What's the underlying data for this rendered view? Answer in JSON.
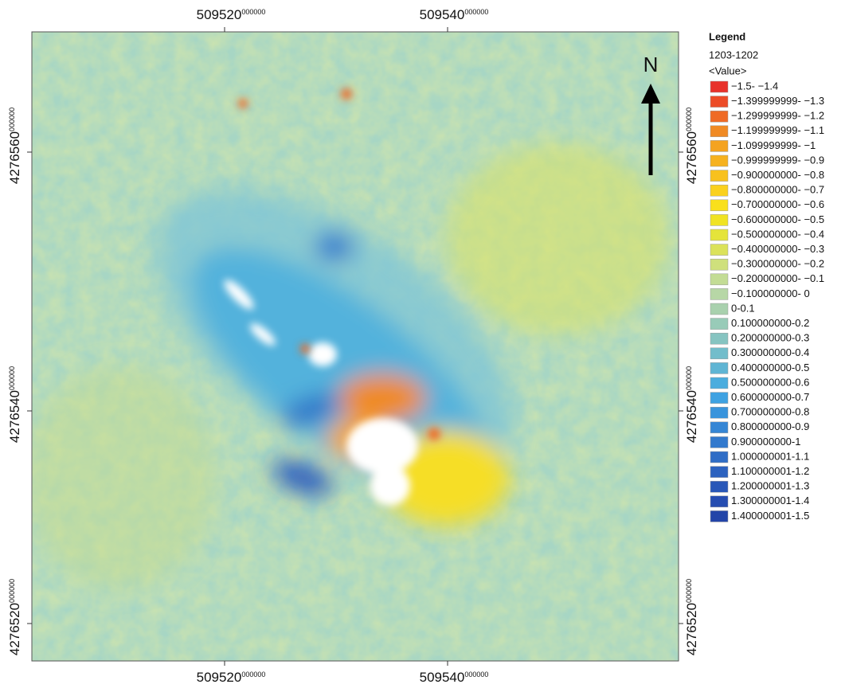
{
  "map": {
    "top_ticks": [
      {
        "main": "509520",
        "sub": "000000"
      },
      {
        "main": "509540",
        "sub": "000000"
      }
    ],
    "bottom_ticks": [
      {
        "main": "509520",
        "sub": "000000"
      },
      {
        "main": "509540",
        "sub": "000000"
      }
    ],
    "left_ticks": [
      {
        "main": "4276560",
        "sub": "000000"
      },
      {
        "main": "4276540",
        "sub": "000000"
      },
      {
        "main": "4276520",
        "sub": "000000"
      }
    ],
    "right_ticks": [
      {
        "main": "4276560",
        "sub": "000000"
      },
      {
        "main": "4276540",
        "sub": "000000"
      },
      {
        "main": "4276520",
        "sub": "000000"
      }
    ],
    "north": "N"
  },
  "legend": {
    "title": "Legend",
    "layer": "1203-1202",
    "field": "<Value>",
    "items": [
      {
        "label": "−1.5- −1.4",
        "color": "#e8312a"
      },
      {
        "label": "−1.399999999- −1.3",
        "color": "#ec4b27"
      },
      {
        "label": "−1.299999999- −1.2",
        "color": "#ef6a25"
      },
      {
        "label": "−1.199999999- −1.1",
        "color": "#f08a24"
      },
      {
        "label": "−1.099999999- −1",
        "color": "#f4a320"
      },
      {
        "label": "−0.999999999- −0.9",
        "color": "#f6b21f"
      },
      {
        "label": "−0.900000000- −0.8",
        "color": "#f8c11e"
      },
      {
        "label": "−0.800000000- −0.7",
        "color": "#fad11d"
      },
      {
        "label": "−0.700000000- −0.6",
        "color": "#f9e01c"
      },
      {
        "label": "−0.600000000- −0.5",
        "color": "#f0e323"
      },
      {
        "label": "−0.500000000- −0.4",
        "color": "#e5e43a"
      },
      {
        "label": "−0.400000000- −0.3",
        "color": "#dbe25a"
      },
      {
        "label": "−0.300000000- −0.2",
        "color": "#cfe07c"
      },
      {
        "label": "−0.200000000- −0.1",
        "color": "#c3dc95"
      },
      {
        "label": "−0.100000000- 0",
        "color": "#b7d7a6"
      },
      {
        "label": "0-0.1",
        "color": "#a9d1ae"
      },
      {
        "label": "0.100000000-0.2",
        "color": "#98cbb8"
      },
      {
        "label": "0.200000000-0.3",
        "color": "#86c4c1"
      },
      {
        "label": "0.300000000-0.4",
        "color": "#72bdcb"
      },
      {
        "label": "0.400000000-0.5",
        "color": "#5fb5d4"
      },
      {
        "label": "0.500000000-0.6",
        "color": "#4badde"
      },
      {
        "label": "0.600000000-0.7",
        "color": "#3ea2e2"
      },
      {
        "label": "0.700000000-0.8",
        "color": "#3994dc"
      },
      {
        "label": "0.800000000-0.9",
        "color": "#3586d5"
      },
      {
        "label": "0.900000000-1",
        "color": "#3279cd"
      },
      {
        "label": "1.000000001-1.1",
        "color": "#2f6dc6"
      },
      {
        "label": "1.100000001-1.2",
        "color": "#2c62bf"
      },
      {
        "label": "1.200000001-1.3",
        "color": "#2957b8"
      },
      {
        "label": "1.300000001-1.4",
        "color": "#264db1"
      },
      {
        "label": "1.400000001-1.5",
        "color": "#2345a8"
      }
    ]
  }
}
